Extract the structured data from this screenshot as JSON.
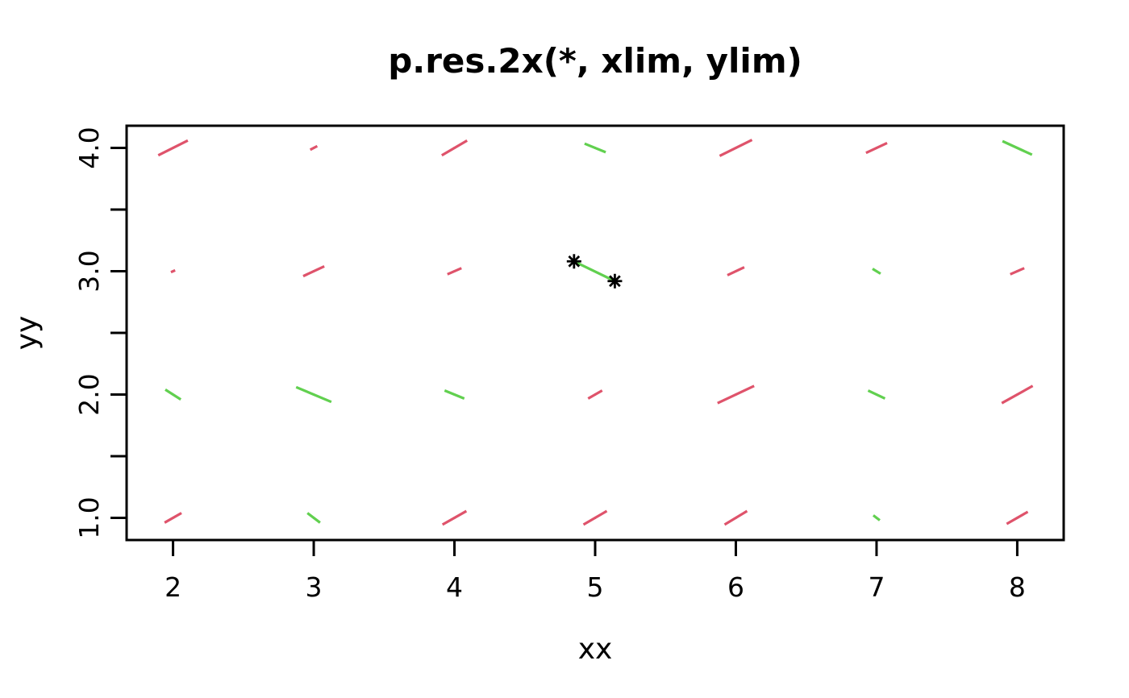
{
  "figure": {
    "background_color": "#FFFFFF",
    "foreground_color": "#000000"
  },
  "colors": {
    "red": "#DF536B",
    "green": "#61D04F",
    "marker_black": "#000000"
  },
  "chart_data": {
    "type": "scatter",
    "subtype": "residual-segment-field",
    "title": "p.res.2x(*, xlim, ylim)",
    "xlabel": "xx",
    "ylabel": "yy",
    "xlim": [
      1.67,
      8.33
    ],
    "ylim": [
      0.82,
      4.18
    ],
    "grid": false,
    "legend": "none",
    "x_ticks": [
      2,
      3,
      4,
      5,
      6,
      7,
      8
    ],
    "x_tick_labels": [
      "2",
      "3",
      "4",
      "5",
      "6",
      "7",
      "8"
    ],
    "y_ticks": [
      1,
      1.5,
      2,
      2.5,
      3,
      3.5,
      4
    ],
    "y_tick_labels": [
      "1.0",
      "",
      "2.0",
      "",
      "3.0",
      "",
      "4.0"
    ],
    "segments_note": "each residual segment is centered on grid point (x,y), spanning dx,dy in data units; color encodes residual sign",
    "segments": [
      {
        "x": 2,
        "y": 4,
        "dx": 0.21,
        "dy": 0.12,
        "color": "red"
      },
      {
        "x": 3,
        "y": 4,
        "dx": 0.05,
        "dy": 0.03,
        "color": "red"
      },
      {
        "x": 4,
        "y": 4,
        "dx": 0.18,
        "dy": 0.12,
        "color": "red"
      },
      {
        "x": 5,
        "y": 4,
        "dx": 0.15,
        "dy": -0.07,
        "color": "green"
      },
      {
        "x": 6,
        "y": 4,
        "dx": 0.23,
        "dy": 0.13,
        "color": "red"
      },
      {
        "x": 7,
        "y": 4,
        "dx": 0.15,
        "dy": 0.08,
        "color": "red"
      },
      {
        "x": 8,
        "y": 4,
        "dx": 0.21,
        "dy": -0.11,
        "color": "green"
      },
      {
        "x": 2,
        "y": 3,
        "dx": 0.03,
        "dy": 0.015,
        "color": "red"
      },
      {
        "x": 3,
        "y": 3,
        "dx": 0.15,
        "dy": 0.08,
        "color": "red"
      },
      {
        "x": 4,
        "y": 3,
        "dx": 0.1,
        "dy": 0.05,
        "color": "red"
      },
      {
        "x": 6,
        "y": 3,
        "dx": 0.12,
        "dy": 0.065,
        "color": "red"
      },
      {
        "x": 7,
        "y": 3,
        "dx": 0.057,
        "dy": -0.04,
        "color": "green"
      },
      {
        "x": 8,
        "y": 3,
        "dx": 0.1,
        "dy": 0.05,
        "color": "red"
      },
      {
        "x": 2,
        "y": 2,
        "dx": 0.11,
        "dy": -0.08,
        "color": "green"
      },
      {
        "x": 3,
        "y": 2,
        "dx": 0.25,
        "dy": -0.12,
        "color": "green"
      },
      {
        "x": 4,
        "y": 2,
        "dx": 0.14,
        "dy": -0.065,
        "color": "green"
      },
      {
        "x": 5,
        "y": 2,
        "dx": 0.1,
        "dy": 0.065,
        "color": "red"
      },
      {
        "x": 6,
        "y": 2,
        "dx": 0.26,
        "dy": 0.14,
        "color": "red"
      },
      {
        "x": 7,
        "y": 2,
        "dx": 0.12,
        "dy": -0.065,
        "color": "green"
      },
      {
        "x": 8,
        "y": 2,
        "dx": 0.22,
        "dy": 0.14,
        "color": "red"
      },
      {
        "x": 2,
        "y": 1,
        "dx": 0.12,
        "dy": 0.078,
        "color": "red"
      },
      {
        "x": 3,
        "y": 1,
        "dx": 0.09,
        "dy": -0.078,
        "color": "green"
      },
      {
        "x": 4,
        "y": 1,
        "dx": 0.17,
        "dy": 0.11,
        "color": "red"
      },
      {
        "x": 5,
        "y": 1,
        "dx": 0.166,
        "dy": 0.11,
        "color": "red"
      },
      {
        "x": 6,
        "y": 1,
        "dx": 0.16,
        "dy": 0.11,
        "color": "red"
      },
      {
        "x": 7,
        "y": 1,
        "dx": 0.046,
        "dy": -0.04,
        "color": "green"
      },
      {
        "x": 8,
        "y": 1,
        "dx": 0.15,
        "dy": 0.098,
        "color": "red"
      }
    ],
    "highlight": {
      "marker": "asterisk-8-spoke",
      "marker_color": "#000000",
      "connector_color": "green",
      "points": [
        {
          "x": 4.85,
          "y": 3.08
        },
        {
          "x": 5.14,
          "y": 2.92
        }
      ]
    }
  }
}
